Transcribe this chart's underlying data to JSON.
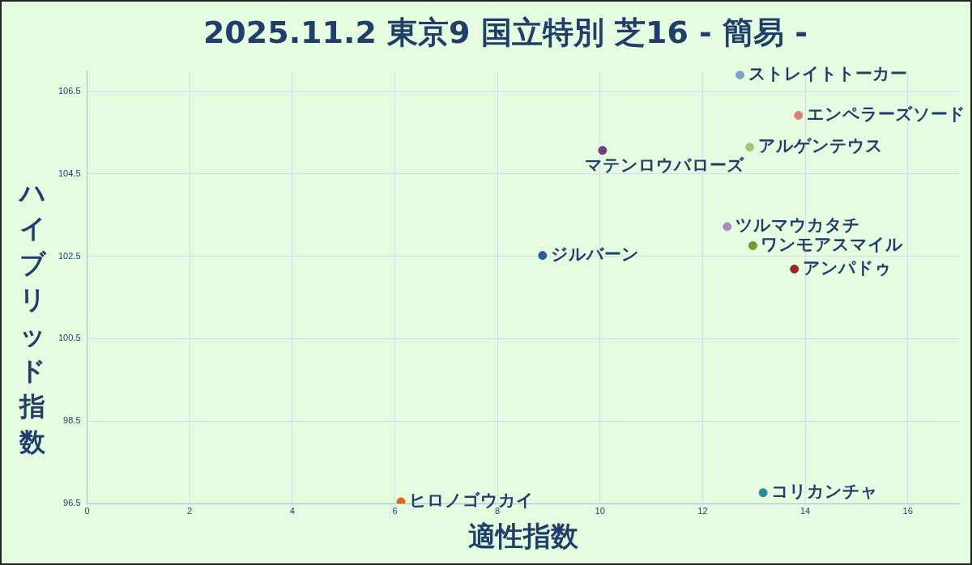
{
  "chart_data": {
    "type": "scatter",
    "title": "2025.11.2 東京9 国立特別 芝16 - 簡易 -",
    "xlabel": "適性指数",
    "ylabel": "ハイブリッド指数",
    "xlim": [
      0,
      17
    ],
    "xticks": [
      0,
      2,
      4,
      6,
      8,
      10,
      12,
      14,
      16
    ],
    "ylim": [
      96.5,
      107
    ],
    "yticks": [
      96.5,
      98.5,
      100.5,
      102.5,
      104.5,
      106.5
    ],
    "grid": true,
    "marker": "circle",
    "series": [
      {
        "name": "ストレイトトーカー",
        "color": "#7f9fd0",
        "x": [
          12.73
        ],
        "values": [
          106.9
        ]
      },
      {
        "name": "エンペラーズソード",
        "color": "#d9807a",
        "x": [
          13.87
        ],
        "values": [
          105.92
        ]
      },
      {
        "name": "アルゲンテウス",
        "color": "#a9c47a",
        "x": [
          12.92
        ],
        "values": [
          105.15
        ]
      },
      {
        "name": "マテンロウバローズ",
        "color": "#6a3f7f",
        "x": [
          10.05
        ],
        "values": [
          105.07
        ]
      },
      {
        "name": "ツルマウカタチ",
        "color": "#a98cc4",
        "x": [
          12.48
        ],
        "values": [
          103.22
        ]
      },
      {
        "name": "ワンモアスマイル",
        "color": "#6f9a2f",
        "x": [
          12.98
        ],
        "values": [
          102.76
        ]
      },
      {
        "name": "アンパドゥ",
        "color": "#a02424",
        "x": [
          13.79
        ],
        "values": [
          102.19
        ]
      },
      {
        "name": "ジルバーン",
        "color": "#2a5f9a",
        "x": [
          8.88
        ],
        "values": [
          102.52
        ]
      },
      {
        "name": "ヒロノゴウカイ",
        "color": "#e0651a",
        "x": [
          6.12
        ],
        "values": [
          96.54
        ]
      },
      {
        "name": "コリカンチャ",
        "color": "#2a8aa0",
        "x": [
          13.18
        ],
        "values": [
          96.76
        ]
      }
    ]
  }
}
